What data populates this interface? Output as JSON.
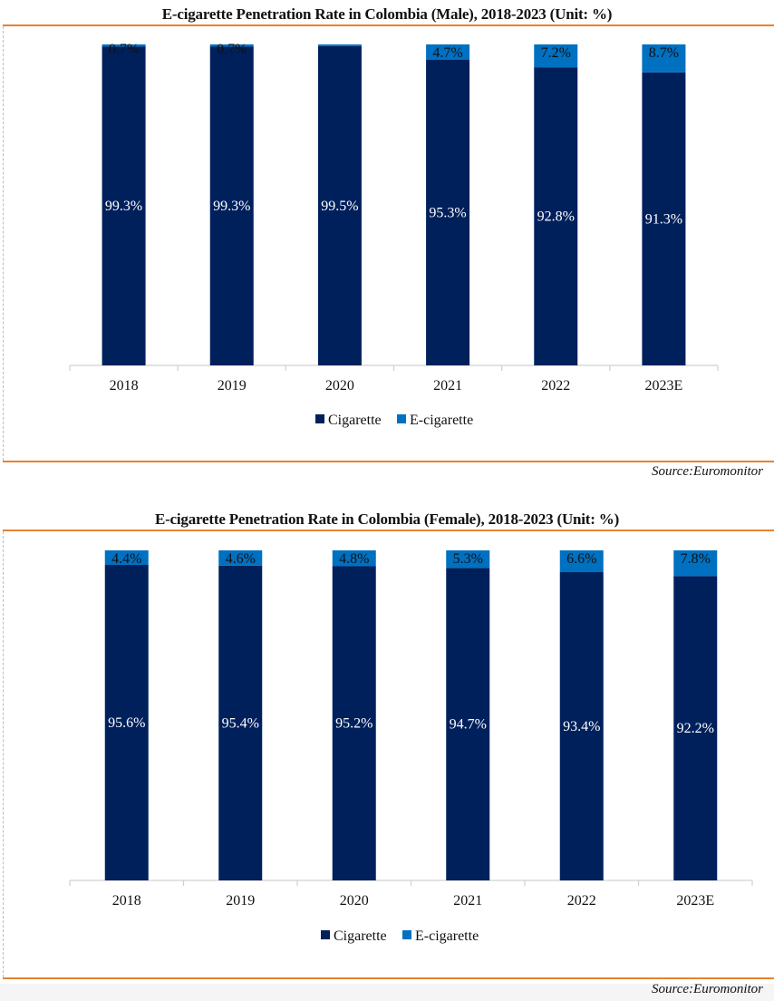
{
  "colors": {
    "cigarette": "#00205c",
    "e_cigarette": "#0070c0",
    "rule": "#e8822e",
    "axis": "#d0d0d0"
  },
  "chart_data": [
    {
      "type": "bar",
      "stacked": true,
      "title": "E-cigarette Penetration Rate in Colombia (Male), 2018-2023 (Unit: %)",
      "xlabel": "",
      "ylabel": "",
      "ylim": [
        0,
        100
      ],
      "grid": false,
      "legend_position": "bottom",
      "categories": [
        "2018",
        "2019",
        "2020",
        "2021",
        "2022",
        "2023E"
      ],
      "series": [
        {
          "name": "Cigarette",
          "values": [
            99.3,
            99.3,
            99.5,
            95.3,
            92.8,
            91.3
          ],
          "labels": [
            "99.3%",
            "99.3%",
            "99.5%",
            "95.3%",
            "92.8%",
            "91.3%"
          ]
        },
        {
          "name": "E-cigarette",
          "values": [
            0.7,
            0.7,
            0.5,
            4.7,
            7.2,
            8.7
          ],
          "labels": [
            "0.7%",
            "0.7%",
            "",
            "4.7%",
            "7.2%",
            "8.7%"
          ]
        }
      ],
      "source": "Source:Euromonitor"
    },
    {
      "type": "bar",
      "stacked": true,
      "title": "E-cigarette Penetration Rate in Colombia (Female), 2018-2023 (Unit: %)",
      "xlabel": "",
      "ylabel": "",
      "ylim": [
        0,
        100
      ],
      "grid": false,
      "legend_position": "bottom",
      "categories": [
        "2018",
        "2019",
        "2020",
        "2021",
        "2022",
        "2023E"
      ],
      "series": [
        {
          "name": "Cigarette",
          "values": [
            95.6,
            95.4,
            95.2,
            94.7,
            93.4,
            92.2
          ],
          "labels": [
            "95.6%",
            "95.4%",
            "95.2%",
            "94.7%",
            "93.4%",
            "92.2%"
          ]
        },
        {
          "name": "E-cigarette",
          "values": [
            4.4,
            4.6,
            4.8,
            5.3,
            6.6,
            7.8
          ],
          "labels": [
            "4.4%",
            "4.6%",
            "4.8%",
            "5.3%",
            "6.6%",
            "7.8%"
          ]
        }
      ],
      "source": "Source:Euromonitor"
    }
  ]
}
